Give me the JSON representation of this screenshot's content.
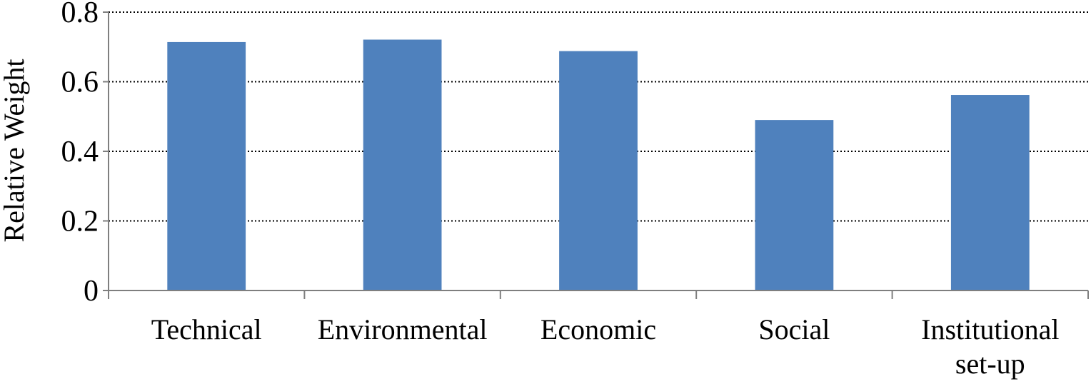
{
  "chart_data": {
    "type": "bar",
    "title": "",
    "xlabel": "",
    "ylabel": "Relative  Weight",
    "categories": [
      "Technical",
      "Environmental",
      "Economic",
      "Social",
      "Institutional\nset-up"
    ],
    "values": [
      0.714,
      0.721,
      0.688,
      0.49,
      0.562
    ],
    "ylim": [
      0,
      0.8
    ],
    "yticks": [
      "0",
      "0.2",
      "0.4",
      "0.6",
      "0.8"
    ],
    "grid": true,
    "legend": "none",
    "bar_color": "#4F81BD"
  }
}
